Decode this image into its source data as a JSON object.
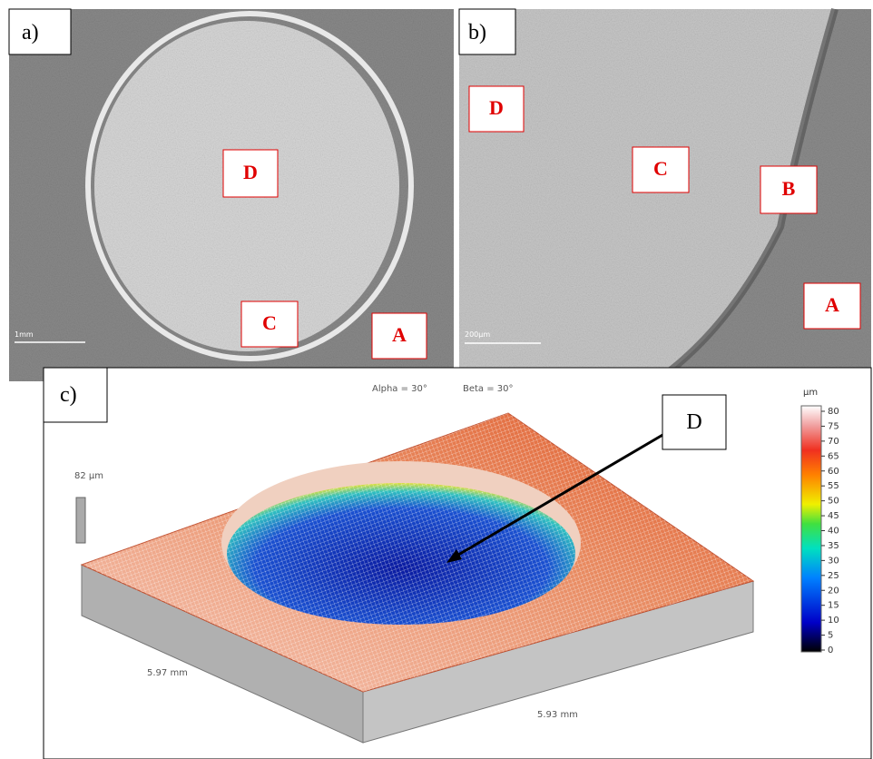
{
  "panels": [
    {
      "tag": "a)",
      "labels": [
        "D",
        "C",
        "A"
      ],
      "scale_bar": "1mm"
    },
    {
      "tag": "b)",
      "labels": [
        "D",
        "C",
        "B",
        "A"
      ],
      "scale_bar": "200µm"
    },
    {
      "tag": "c)",
      "angles": [
        "Alpha = 30°",
        "Beta = 30°"
      ],
      "height_label": "82 µm",
      "unit": "µm",
      "colorbar_ticks": [
        0,
        5,
        10,
        15,
        20,
        25,
        30,
        35,
        40,
        45,
        50,
        55,
        60,
        65,
        70,
        75,
        80
      ],
      "dimensions": [
        "5.97 mm",
        "5.93 mm"
      ],
      "callout": "D"
    }
  ]
}
